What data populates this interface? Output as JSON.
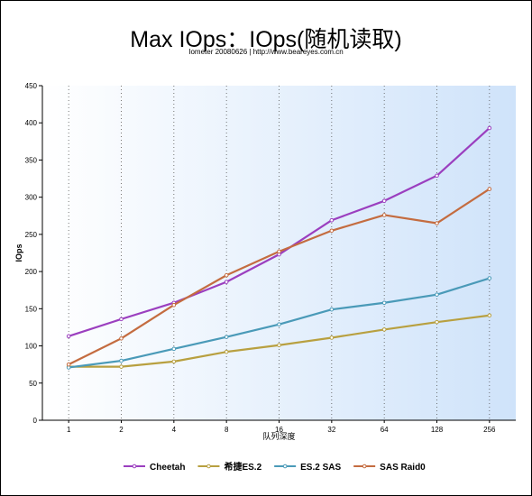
{
  "chart_data": {
    "type": "line",
    "title": "Max IOps：IOps(随机读取)",
    "subtitle": "Iometer 20080626 | http://www.beareyes.com.cn",
    "xlabel": "队列深度",
    "ylabel": "IOps",
    "categories": [
      "1",
      "2",
      "4",
      "8",
      "16",
      "32",
      "64",
      "128",
      "256"
    ],
    "ylim": [
      0,
      450
    ],
    "yticks": [
      0,
      50,
      100,
      150,
      200,
      250,
      300,
      350,
      400,
      450
    ],
    "grid": "vertical dotted",
    "legend": "bottom",
    "series": [
      {
        "name": "Cheetah",
        "color": "#9b3fbf",
        "values": [
          113,
          136,
          158,
          186,
          223,
          269,
          295,
          329,
          393
        ]
      },
      {
        "name": "希捷ES.2",
        "color": "#b8a040",
        "values": [
          72,
          72,
          79,
          92,
          101,
          111,
          122,
          132,
          141
        ]
      },
      {
        "name": "ES.2 SAS",
        "color": "#4a9ab8",
        "values": [
          71,
          80,
          96,
          112,
          129,
          149,
          158,
          169,
          191
        ]
      },
      {
        "name": "SAS Raid0",
        "color": "#c46c40",
        "values": [
          75,
          110,
          155,
          195,
          227,
          255,
          276,
          265,
          311
        ]
      }
    ]
  }
}
